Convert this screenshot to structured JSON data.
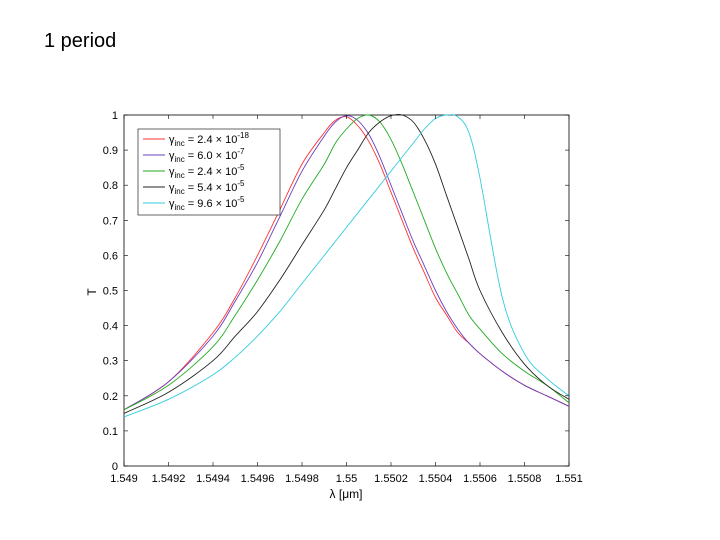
{
  "slide": {
    "title": "1 period"
  },
  "chart_data": {
    "type": "line",
    "title": "",
    "xlabel": "λ [μm]",
    "ylabel": "T",
    "xlim": [
      1.549,
      1.551
    ],
    "ylim": [
      0,
      1
    ],
    "grid": false,
    "legend_position": "top-left",
    "x_ticks": [
      "1.549",
      "1.5492",
      "1.5494",
      "1.5496",
      "1.5498",
      "1.55",
      "1.5502",
      "1.5504",
      "1.5506",
      "1.5508",
      "1.551"
    ],
    "y_ticks": [
      "0",
      "0.1",
      "0.2",
      "0.3",
      "0.4",
      "0.5",
      "0.6",
      "0.7",
      "0.8",
      "0.9",
      "1"
    ],
    "x": [
      1.549,
      1.5492,
      1.5494,
      1.5495,
      1.5496,
      1.5497,
      1.5498,
      1.5499,
      1.54995,
      1.55,
      1.55005,
      1.5501,
      1.55015,
      1.5502,
      1.55025,
      1.5503,
      1.55035,
      1.5504,
      1.55045,
      1.5505,
      1.55055,
      1.5506,
      1.5507,
      1.5508,
      1.5509,
      1.551
    ],
    "series": [
      {
        "name": "γinc = 2.4 × 10-18",
        "color": "#ff3333",
        "values": [
          0.16,
          0.24,
          0.38,
          0.48,
          0.6,
          0.73,
          0.86,
          0.95,
          0.985,
          0.995,
          0.97,
          0.925,
          0.86,
          0.78,
          0.7,
          0.62,
          0.55,
          0.48,
          0.43,
          0.38,
          0.35,
          0.32,
          0.27,
          0.23,
          0.2,
          0.17
        ]
      },
      {
        "name": "γinc = 6.0 × 10-7",
        "color": "#6a3fbf",
        "values": [
          0.16,
          0.24,
          0.37,
          0.47,
          0.58,
          0.71,
          0.84,
          0.94,
          0.98,
          0.998,
          0.985,
          0.945,
          0.88,
          0.8,
          0.72,
          0.64,
          0.57,
          0.5,
          0.44,
          0.39,
          0.35,
          0.32,
          0.27,
          0.23,
          0.2,
          0.17
        ]
      },
      {
        "name": "γinc = 2.4 × 10-5",
        "color": "#22aa22",
        "values": [
          0.16,
          0.23,
          0.34,
          0.43,
          0.53,
          0.64,
          0.76,
          0.86,
          0.92,
          0.96,
          0.99,
          1.0,
          0.98,
          0.93,
          0.86,
          0.78,
          0.7,
          0.62,
          0.55,
          0.49,
          0.43,
          0.39,
          0.32,
          0.27,
          0.23,
          0.18
        ]
      },
      {
        "name": "γinc = 5.4 × 10-5",
        "color": "#222222",
        "values": [
          0.15,
          0.21,
          0.3,
          0.37,
          0.44,
          0.53,
          0.63,
          0.73,
          0.79,
          0.85,
          0.9,
          0.95,
          0.98,
          0.998,
          1.0,
          0.98,
          0.93,
          0.86,
          0.77,
          0.68,
          0.59,
          0.5,
          0.38,
          0.29,
          0.23,
          0.19
        ]
      },
      {
        "name": "γinc = 9.6 × 10-5",
        "color": "#33ccdd",
        "values": [
          0.14,
          0.19,
          0.26,
          0.31,
          0.37,
          0.44,
          0.52,
          0.6,
          0.64,
          0.68,
          0.72,
          0.76,
          0.8,
          0.84,
          0.88,
          0.92,
          0.96,
          0.99,
          1.0,
          0.995,
          0.95,
          0.82,
          0.48,
          0.32,
          0.25,
          0.2
        ]
      }
    ],
    "legend": [
      {
        "base": "γ",
        "sub": "inc",
        "text": " = 2.4 × 10",
        "sup": "-18",
        "color": "#ff3333"
      },
      {
        "base": "γ",
        "sub": "inc",
        "text": " = 6.0 × 10",
        "sup": "-7",
        "color": "#6a3fbf"
      },
      {
        "base": "γ",
        "sub": "inc",
        "text": " = 2.4 × 10",
        "sup": "-5",
        "color": "#22aa22"
      },
      {
        "base": "γ",
        "sub": "inc",
        "text": " = 5.4 × 10",
        "sup": "-5",
        "color": "#222222"
      },
      {
        "base": "γ",
        "sub": "inc",
        "text": " = 9.6 × 10",
        "sup": "-5",
        "color": "#33ccdd"
      }
    ]
  }
}
